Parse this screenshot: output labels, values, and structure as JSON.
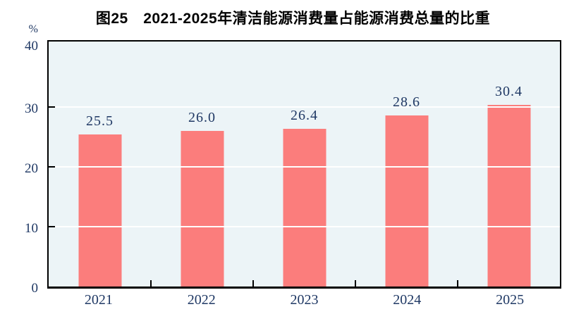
{
  "title": "图25　2021-2025年清洁能源消费量占能源消费总量的比重",
  "chart_data": {
    "type": "bar",
    "title": "图25　2021-2025年清洁能源消费量占能源消费总量的比重",
    "categories": [
      "2021",
      "2022",
      "2023",
      "2024",
      "2025"
    ],
    "values": [
      25.5,
      26.0,
      26.4,
      28.6,
      30.4
    ],
    "value_labels": [
      "25.5",
      "26.0",
      "26.4",
      "28.6",
      "30.4"
    ],
    "xlabel": "",
    "ylabel": "%",
    "ylim": [
      0,
      40
    ],
    "yticks": [
      0,
      10,
      20,
      30,
      40
    ],
    "grid": true,
    "legend": false,
    "colors": {
      "bar": "#FB7D7C",
      "plot_background": "#ECF4F7",
      "gridline": "#FFFFFF",
      "axis": "#000000",
      "label": "#1F3864",
      "title": "#000000"
    }
  }
}
